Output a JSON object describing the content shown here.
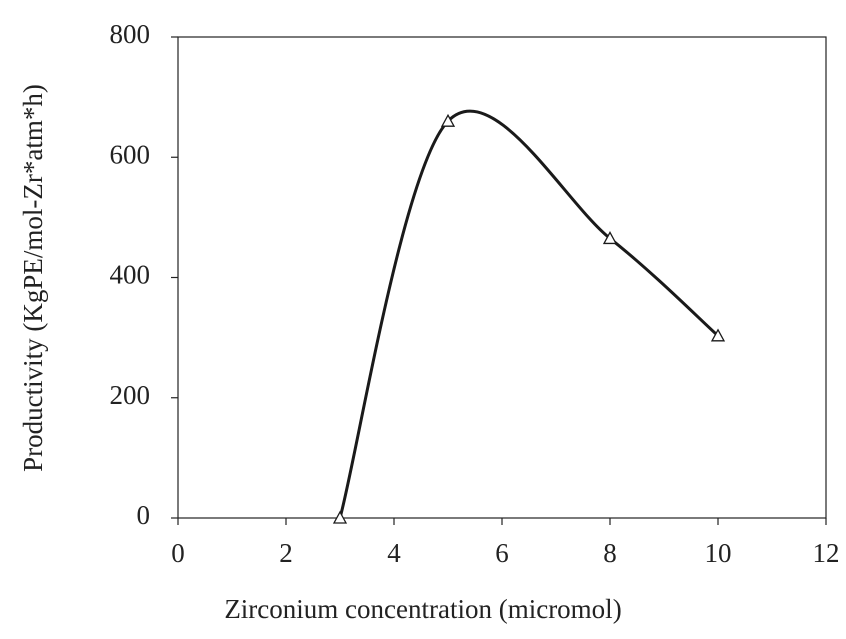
{
  "chart_data": {
    "type": "line",
    "x_label": "Zirconium concentration (micromol)",
    "y_label": "Productivity (KgPE/mol-Zr*atm*h)",
    "x": [
      3,
      5,
      8,
      10
    ],
    "series": [
      {
        "color": "#1a1a1a",
        "values": [
          0,
          660,
          465,
          303
        ]
      }
    ],
    "xlim": [
      0,
      12
    ],
    "xticks": [
      0,
      2,
      4,
      6,
      8,
      10,
      12
    ],
    "ylim": [
      0,
      800
    ],
    "yticks": [
      0,
      200,
      400,
      600,
      800
    ],
    "smooth": true,
    "marker": "triangle",
    "grid": false
  }
}
